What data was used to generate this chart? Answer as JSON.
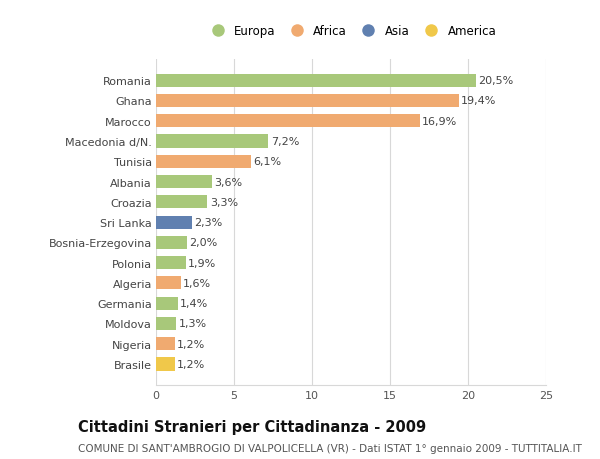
{
  "categories": [
    "Romania",
    "Ghana",
    "Marocco",
    "Macedonia d/N.",
    "Tunisia",
    "Albania",
    "Croazia",
    "Sri Lanka",
    "Bosnia-Erzegovina",
    "Polonia",
    "Algeria",
    "Germania",
    "Moldova",
    "Nigeria",
    "Brasile"
  ],
  "values": [
    20.5,
    19.4,
    16.9,
    7.2,
    6.1,
    3.6,
    3.3,
    2.3,
    2.0,
    1.9,
    1.6,
    1.4,
    1.3,
    1.2,
    1.2
  ],
  "continents": [
    "Europa",
    "Africa",
    "Africa",
    "Europa",
    "Africa",
    "Europa",
    "Europa",
    "Asia",
    "Europa",
    "Europa",
    "Africa",
    "Europa",
    "Europa",
    "Africa",
    "America"
  ],
  "colors": {
    "Europa": "#a8c87a",
    "Africa": "#f0aa70",
    "Asia": "#6080b0",
    "America": "#f0c84a"
  },
  "legend_order": [
    "Europa",
    "Africa",
    "Asia",
    "America"
  ],
  "xlim": [
    0,
    25
  ],
  "xticks": [
    0,
    5,
    10,
    15,
    20,
    25
  ],
  "title": "Cittadini Stranieri per Cittadinanza - 2009",
  "subtitle": "COMUNE DI SANT'AMBROGIO DI VALPOLICELLA (VR) - Dati ISTAT 1° gennaio 2009 - TUTTITALIA.IT",
  "bg_color": "#ffffff",
  "grid_color": "#d8d8d8",
  "bar_height": 0.65,
  "label_fontsize": 8.0,
  "value_fontsize": 8.0,
  "title_fontsize": 10.5,
  "subtitle_fontsize": 7.5
}
